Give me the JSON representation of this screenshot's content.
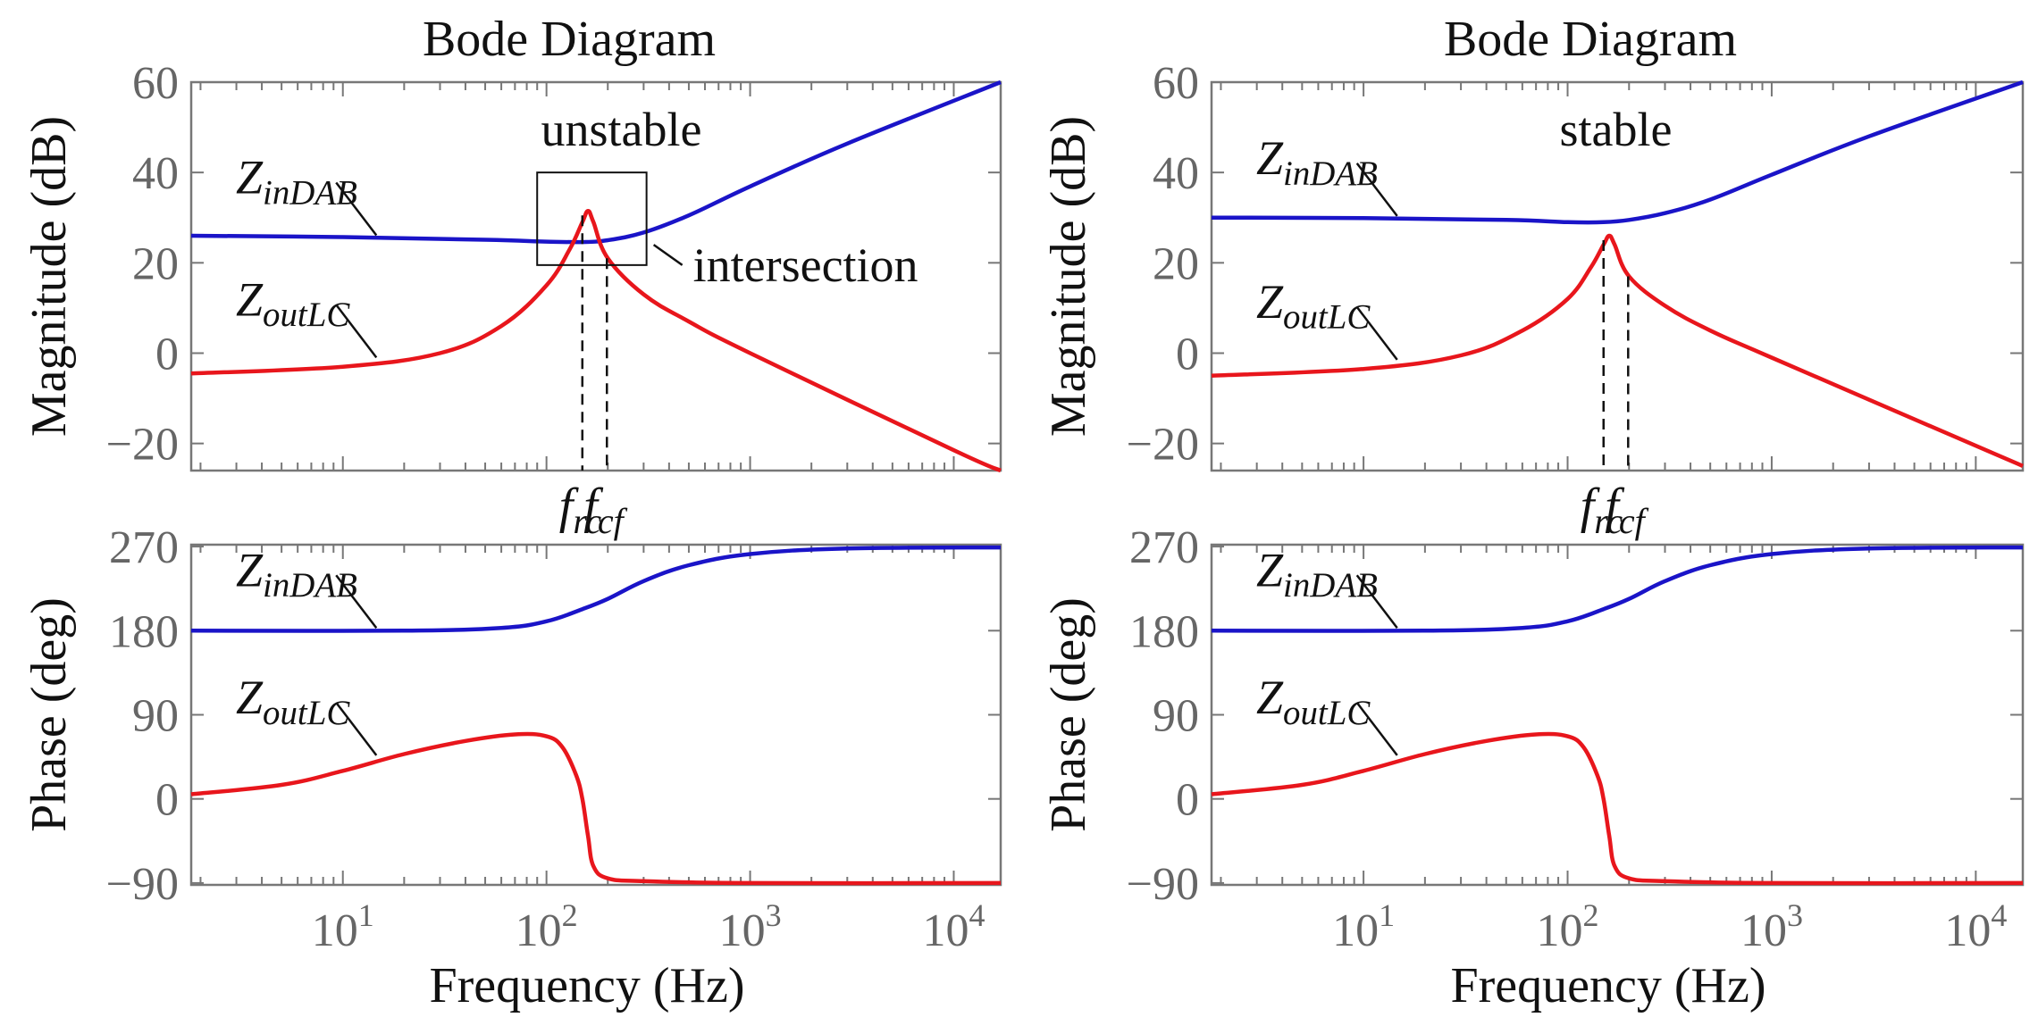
{
  "colors": {
    "zin": "#1a14c8",
    "zout": "#e8161c",
    "axis": "#777777",
    "tick": "#666666"
  },
  "chart_data": [
    {
      "type": "line",
      "panel": "left",
      "title": "Bode Diagram",
      "xlabel": "Frequency  (Hz)",
      "xscale": "log",
      "xlim": [
        1.8,
        17000
      ],
      "x_tick_labels": [
        {
          "base": "10",
          "exp": "1"
        },
        {
          "base": "10",
          "exp": "2"
        },
        {
          "base": "10",
          "exp": "3"
        },
        {
          "base": "10",
          "exp": "4"
        }
      ],
      "magnitude": {
        "ylabel": "Magnitude (dB)",
        "ylim": [
          -26,
          60
        ],
        "yticks": [
          60,
          40,
          20,
          0,
          -20
        ],
        "ytick_labels": [
          "60",
          "40",
          "20",
          "0",
          "−20"
        ],
        "series": [
          {
            "name": "ZinDAB",
            "label_main": "Z",
            "label_sub": "inDAB",
            "x": [
              1.8,
              10,
              50,
              100,
              150,
              200,
              300,
              500,
              1000,
              3000,
              17000
            ],
            "y": [
              26,
              25.7,
              25.1,
              24.7,
              24.6,
              25.0,
              26.7,
              30.5,
              36.9,
              46.4,
              60.0
            ]
          },
          {
            "name": "ZoutLC",
            "label_main": "Z",
            "label_sub": "outLC",
            "x": [
              1.8,
              10,
              30,
              60,
              100,
              130,
              150,
              160,
              170,
              200,
              300,
              500,
              1000,
              10000,
              17000
            ],
            "y": [
              -4.5,
              -3,
              0,
              6,
              15,
              23,
              29,
              31.5,
              29,
              21,
              13,
              7,
              0,
              -21.5,
              -26
            ]
          }
        ],
        "annotations": {
          "state": "unstable",
          "marker": "intersection",
          "f_labels": [
            {
              "main": "f",
              "sub": "rc"
            },
            {
              "main": "f",
              "sub": "cf"
            }
          ],
          "f_values_hz": [
            150,
            198
          ]
        }
      },
      "phase": {
        "ylabel": "Phase (deg)",
        "ylim": [
          -92,
          272
        ],
        "yticks": [
          270,
          180,
          90,
          0,
          -90
        ],
        "ytick_labels": [
          "270",
          "180",
          "90",
          "0",
          "−90"
        ],
        "series": [
          {
            "name": "ZinDAB",
            "label_main": "Z",
            "label_sub": "inDAB",
            "x": [
              1.8,
              20,
              60,
              100,
              150,
              200,
              300,
              500,
              1000,
              3000,
              17000
            ],
            "y": [
              180,
              180,
              183,
              190,
              203,
              214,
              233,
              250,
              262,
              268,
              269
            ]
          },
          {
            "name": "ZoutLC",
            "label_main": "Z",
            "label_sub": "outLC",
            "x": [
              1.8,
              5,
              10,
              20,
              40,
              70,
              100,
              120,
              140,
              150,
              160,
              170,
              200,
              300,
              1000,
              17000
            ],
            "y": [
              5,
              15,
              30,
              48,
              62,
              69,
              67,
              55,
              25,
              0,
              -40,
              -72,
              -85,
              -88,
              -90,
              -90
            ]
          }
        ]
      }
    },
    {
      "type": "line",
      "panel": "right",
      "title": "Bode Diagram",
      "xlabel": "Frequency  (Hz)",
      "xscale": "log",
      "xlim": [
        1.8,
        17000
      ],
      "x_tick_labels": [
        {
          "base": "10",
          "exp": "1"
        },
        {
          "base": "10",
          "exp": "2"
        },
        {
          "base": "10",
          "exp": "3"
        },
        {
          "base": "10",
          "exp": "4"
        }
      ],
      "magnitude": {
        "ylabel": "Magnitude (dB)",
        "ylim": [
          -26,
          60
        ],
        "yticks": [
          60,
          40,
          20,
          0,
          -20
        ],
        "ytick_labels": [
          "60",
          "40",
          "20",
          "0",
          "−20"
        ],
        "series": [
          {
            "name": "ZinDAB",
            "label_main": "Z",
            "label_sub": "inDAB",
            "x": [
              1.8,
              10,
              50,
              100,
              150,
              200,
              300,
              500,
              1000,
              3000,
              17000
            ],
            "y": [
              30,
              29.9,
              29.5,
              29.0,
              29.0,
              29.5,
              31.0,
              34.0,
              39.5,
              48.0,
              60.0
            ]
          },
          {
            "name": "ZoutLC",
            "label_main": "Z",
            "label_sub": "outLC",
            "x": [
              1.8,
              10,
              30,
              60,
              100,
              130,
              150,
              160,
              170,
              200,
              300,
              500,
              1000,
              10000,
              17000
            ],
            "y": [
              -5,
              -3.5,
              -0.5,
              5,
              12,
              19,
              24,
              26,
              24,
              17,
              10.5,
              5,
              -1,
              -20.5,
              -25
            ]
          }
        ],
        "annotations": {
          "state": "stable",
          "f_labels": [
            {
              "main": "f",
              "sub": "rc"
            },
            {
              "main": "f",
              "sub": "cf"
            }
          ],
          "f_values_hz": [
            150,
            198
          ]
        }
      },
      "phase": {
        "ylabel": "Phase (deg)",
        "ylim": [
          -92,
          272
        ],
        "yticks": [
          270,
          180,
          90,
          0,
          -90
        ],
        "ytick_labels": [
          "270",
          "180",
          "90",
          "0",
          "−90"
        ],
        "series": [
          {
            "name": "ZinDAB",
            "label_main": "Z",
            "label_sub": "inDAB",
            "x": [
              1.8,
              20,
              60,
              100,
              150,
              200,
              300,
              500,
              1000,
              3000,
              17000
            ],
            "y": [
              180,
              180,
              183,
              190,
              203,
              214,
              233,
              250,
              262,
              268,
              269
            ]
          },
          {
            "name": "ZoutLC",
            "label_main": "Z",
            "label_sub": "outLC",
            "x": [
              1.8,
              5,
              10,
              20,
              40,
              70,
              100,
              120,
              140,
              150,
              160,
              170,
              200,
              300,
              1000,
              17000
            ],
            "y": [
              5,
              15,
              30,
              48,
              62,
              69,
              67,
              55,
              25,
              0,
              -40,
              -72,
              -85,
              -88,
              -90,
              -90
            ]
          }
        ]
      }
    }
  ]
}
